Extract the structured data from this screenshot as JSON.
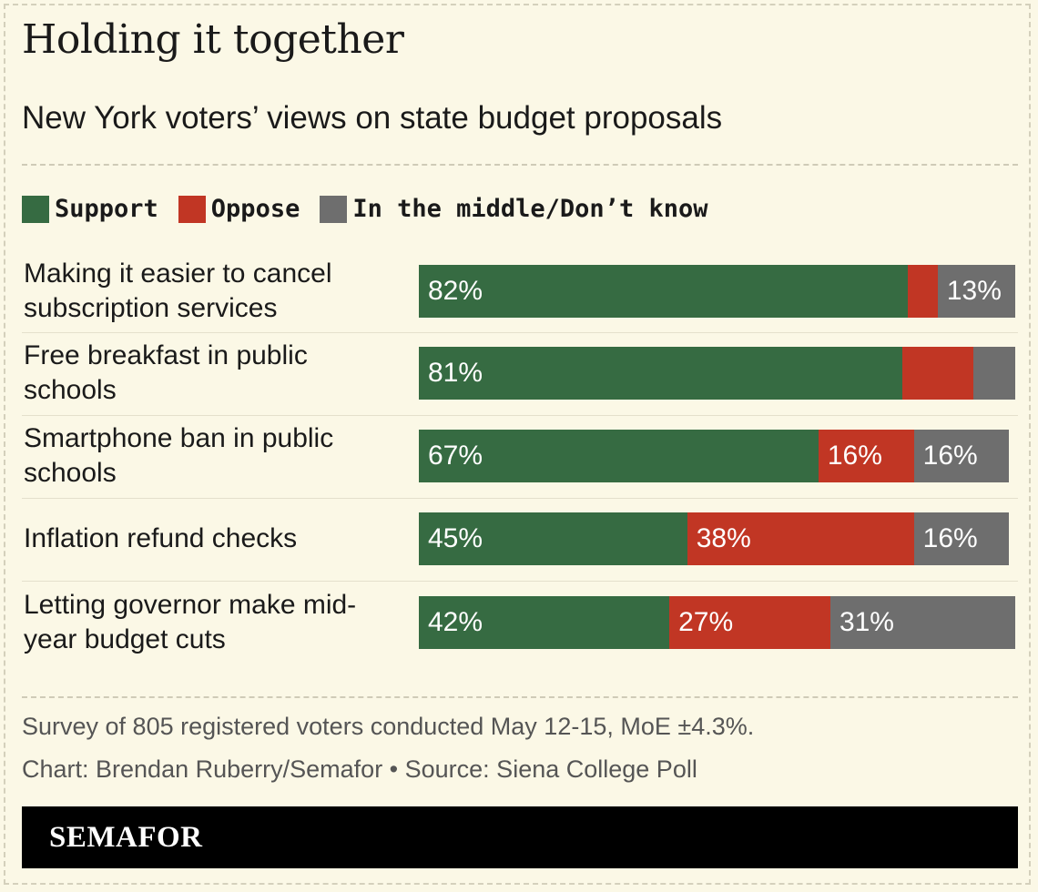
{
  "chart_data": {
    "type": "bar",
    "orientation": "horizontal",
    "stacked": true,
    "title": "Holding it together",
    "subtitle": "New York voters’ views on state budget proposals",
    "categories": [
      "Making it easier to cancel subscription services",
      "Free breakfast in public schools",
      "Smartphone ban in public schools",
      "Inflation refund checks",
      "Letting governor make mid-year budget cuts"
    ],
    "series": [
      {
        "name": "Support",
        "color": "#366b42",
        "values": [
          82,
          81,
          67,
          45,
          42
        ],
        "labels": [
          "82%",
          "81%",
          "67%",
          "45%",
          "42%"
        ]
      },
      {
        "name": "Oppose",
        "color": "#c13624",
        "values": [
          5,
          12,
          16,
          38,
          27
        ],
        "labels": [
          "",
          "",
          "16%",
          "38%",
          "27%"
        ]
      },
      {
        "name": "In the middle/Don’t know",
        "color": "#6e6e6e",
        "values": [
          13,
          7,
          16,
          16,
          31
        ],
        "labels": [
          "13%",
          "",
          "16%",
          "16%",
          "31%"
        ]
      }
    ],
    "xlim": [
      0,
      100
    ]
  },
  "notes": {
    "survey": "Survey of 805 registered voters conducted May 12-15, MoE ±4.3%.",
    "credit": "Chart: Brendan Ruberry/Semafor • Source: Siena College Poll"
  },
  "brand": "SEMAFOR"
}
